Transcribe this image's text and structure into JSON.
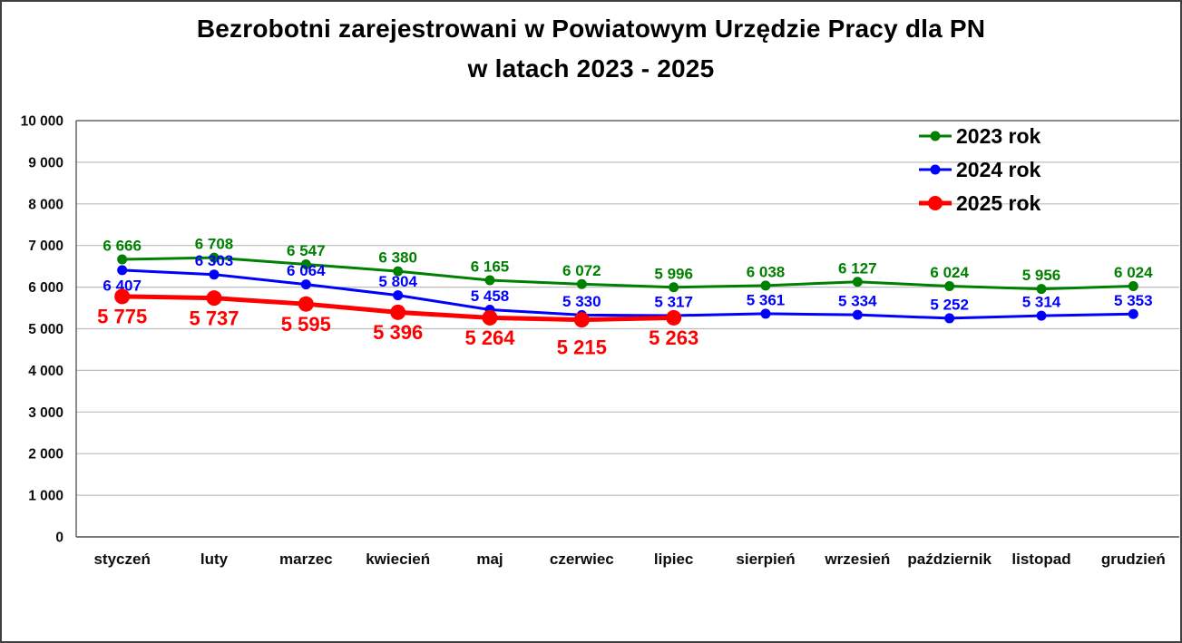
{
  "title": {
    "line1": "Bezrobotni zarejestrowani w Powiatowym Urzędzie Pracy dla PN",
    "line2": "w latach 2023 - 2025"
  },
  "chart_data": {
    "type": "line",
    "title": "Bezrobotni zarejestrowani w Powiatowym Urzędzie Pracy dla PN w latach 2023 - 2025",
    "categories": [
      "styczeń",
      "luty",
      "marzec",
      "kwiecień",
      "maj",
      "czerwiec",
      "lipiec",
      "sierpień",
      "wrzesień",
      "październik",
      "listopad",
      "grudzień"
    ],
    "series": [
      {
        "name": "2023 rok",
        "color": "#008000",
        "values": [
          6666,
          6708,
          6547,
          6380,
          6165,
          6072,
          5996,
          6038,
          6127,
          6024,
          5956,
          6024
        ]
      },
      {
        "name": "2024 rok",
        "color": "#0000ff",
        "values": [
          6407,
          6303,
          6064,
          5804,
          5458,
          5330,
          5317,
          5361,
          5334,
          5252,
          5314,
          5353
        ]
      },
      {
        "name": "2025 rok",
        "color": "#ff0000",
        "values": [
          5775,
          5737,
          5595,
          5396,
          5264,
          5215,
          5263
        ]
      }
    ],
    "xlabel": "",
    "ylabel": "",
    "ylim": [
      0,
      10000
    ],
    "ytick_step": 1000,
    "ytick_labels": [
      "0",
      "1 000",
      "2 000",
      "3 000",
      "4 000",
      "5 000",
      "6 000",
      "7 000",
      "8 000",
      "9 000",
      "10 000"
    ],
    "grid": true,
    "legend_position": "top-right",
    "legend_entries": [
      "2023 rok",
      "2024 rok",
      "2025 rok"
    ],
    "number_format": "space-thousands"
  },
  "colors": {
    "series_2023": "#008000",
    "series_2024": "#0000ff",
    "series_2025": "#ff0000",
    "gridline": "#bdbdbd",
    "top_gridline": "#8c8c8c",
    "axis": "#4d4d4d",
    "frame_border": "#3f3f3f",
    "title_text": "#000000",
    "legend_text": "#000000",
    "background": "#ffffff"
  }
}
